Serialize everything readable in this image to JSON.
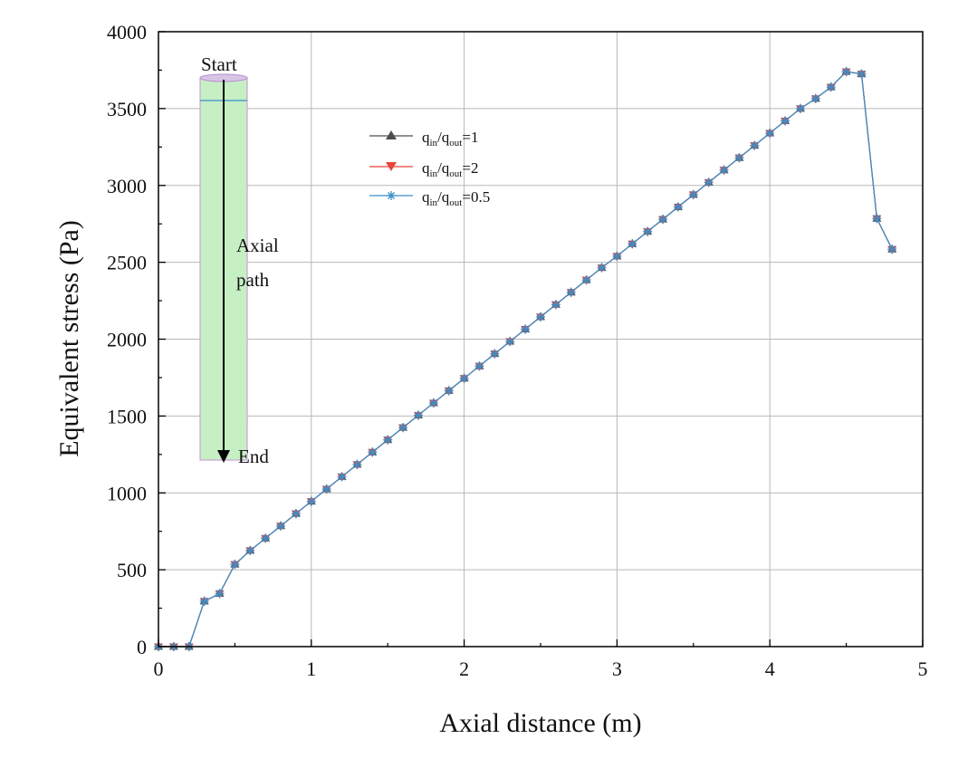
{
  "chart_data": {
    "type": "line",
    "xlabel": "Axial distance (m)",
    "ylabel": "Equivalent stress (Pa)",
    "xlim": [
      0,
      5
    ],
    "ylim": [
      0,
      4000
    ],
    "xticks": [
      0,
      1,
      2,
      3,
      4,
      5
    ],
    "yticks": [
      0,
      500,
      1000,
      1500,
      2000,
      2500,
      3000,
      3500,
      4000
    ],
    "grid": true,
    "legend_position": "upper-center",
    "x": [
      0,
      0.1,
      0.2,
      0.3,
      0.4,
      0.5,
      0.6,
      0.7,
      0.8,
      0.9,
      1.0,
      1.1,
      1.2,
      1.3,
      1.4,
      1.5,
      1.6,
      1.7,
      1.8,
      1.9,
      2.0,
      2.1,
      2.2,
      2.3,
      2.4,
      2.5,
      2.6,
      2.7,
      2.8,
      2.9,
      3.0,
      3.1,
      3.2,
      3.3,
      3.4,
      3.5,
      3.6,
      3.7,
      3.8,
      3.9,
      4.0,
      4.1,
      4.2,
      4.3,
      4.4,
      4.5,
      4.6,
      4.7,
      4.8
    ],
    "series": [
      {
        "name": "q_in/q_out=1",
        "legend_main": "q",
        "legend_sub1": "in",
        "legend_mid": "/q",
        "legend_sub2": "out",
        "legend_tail": "=1",
        "color": "#4d4d4d",
        "marker": "triangle-up",
        "values": [
          0,
          0,
          0,
          295,
          345,
          535,
          625,
          705,
          785,
          865,
          945,
          1025,
          1105,
          1185,
          1265,
          1345,
          1425,
          1505,
          1585,
          1665,
          1745,
          1825,
          1905,
          1985,
          2065,
          2145,
          2225,
          2305,
          2385,
          2465,
          2540,
          2620,
          2700,
          2780,
          2860,
          2940,
          3020,
          3100,
          3180,
          3260,
          3340,
          3420,
          3500,
          3565,
          3640,
          3740,
          3725,
          2785,
          2585
        ]
      },
      {
        "name": "q_in/q_out=2",
        "legend_main": "q",
        "legend_sub1": "in",
        "legend_mid": "/q",
        "legend_sub2": "out",
        "legend_tail": "=2",
        "color": "#e8443a",
        "marker": "triangle-down",
        "values": [
          0,
          0,
          0,
          295,
          345,
          535,
          625,
          705,
          785,
          865,
          945,
          1025,
          1105,
          1185,
          1265,
          1345,
          1425,
          1505,
          1585,
          1665,
          1745,
          1825,
          1905,
          1985,
          2065,
          2145,
          2225,
          2305,
          2385,
          2465,
          2540,
          2620,
          2700,
          2780,
          2860,
          2940,
          3020,
          3100,
          3180,
          3260,
          3340,
          3420,
          3500,
          3565,
          3640,
          3740,
          3725,
          2785,
          2585
        ]
      },
      {
        "name": "q_in/q_out=0.5",
        "legend_main": "q",
        "legend_sub1": "in",
        "legend_mid": "/q",
        "legend_sub2": "out",
        "legend_tail": "=0.5",
        "color": "#3a8fc9",
        "marker": "asterisk",
        "values": [
          0,
          0,
          0,
          295,
          345,
          535,
          625,
          705,
          785,
          865,
          945,
          1025,
          1105,
          1185,
          1265,
          1345,
          1425,
          1505,
          1585,
          1665,
          1745,
          1825,
          1905,
          1985,
          2065,
          2145,
          2225,
          2305,
          2385,
          2465,
          2540,
          2620,
          2700,
          2780,
          2860,
          2940,
          3020,
          3100,
          3180,
          3260,
          3340,
          3420,
          3500,
          3565,
          3640,
          3740,
          3725,
          2785,
          2585
        ]
      }
    ],
    "inset": {
      "start_label": "Start",
      "path_label_line1": "Axial",
      "path_label_line2": "path",
      "end_label": "End",
      "cylinder_color": "#c6efc4",
      "cylinder_edge_color": "#c9a3d6"
    }
  }
}
